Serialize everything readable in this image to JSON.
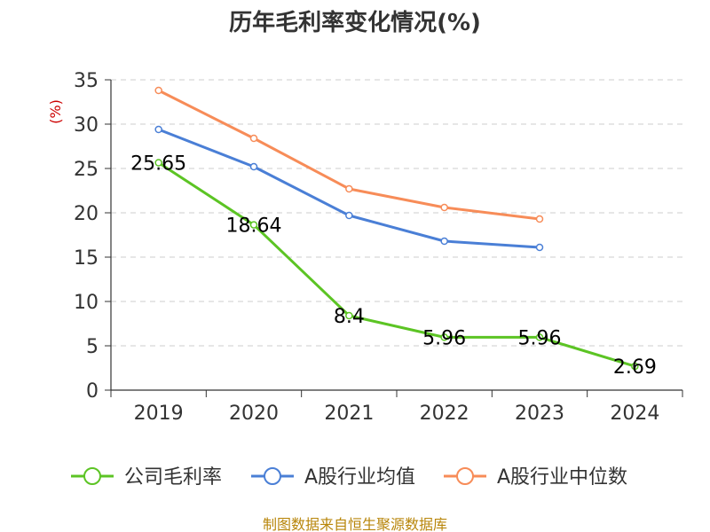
{
  "chart_data": {
    "type": "line",
    "title": "历年毛利率变化情况(%)",
    "ylabel": "(%)",
    "xlabel": "",
    "ylim": [
      0,
      35
    ],
    "yticks": [
      0,
      5,
      10,
      15,
      20,
      25,
      30,
      35
    ],
    "categories": [
      "2019",
      "2020",
      "2021",
      "2022",
      "2023",
      "2024"
    ],
    "grid": true,
    "legend_position": "bottom",
    "series": [
      {
        "name": "公司毛利率",
        "color": "#5cc424",
        "values": [
          25.65,
          18.64,
          8.4,
          5.96,
          5.96,
          2.69
        ],
        "labels": [
          "25.65",
          "18.64",
          "8.4",
          "5.96",
          "5.96",
          "2.69"
        ]
      },
      {
        "name": "A股行业均值",
        "color": "#4a7fd6",
        "values": [
          29.4,
          25.2,
          19.7,
          16.8,
          16.1,
          null
        ]
      },
      {
        "name": "A股行业中位数",
        "color": "#f78c58",
        "values": [
          33.8,
          28.4,
          22.7,
          20.6,
          19.3,
          null
        ]
      }
    ]
  },
  "source": "制图数据来自恒生聚源数据库"
}
